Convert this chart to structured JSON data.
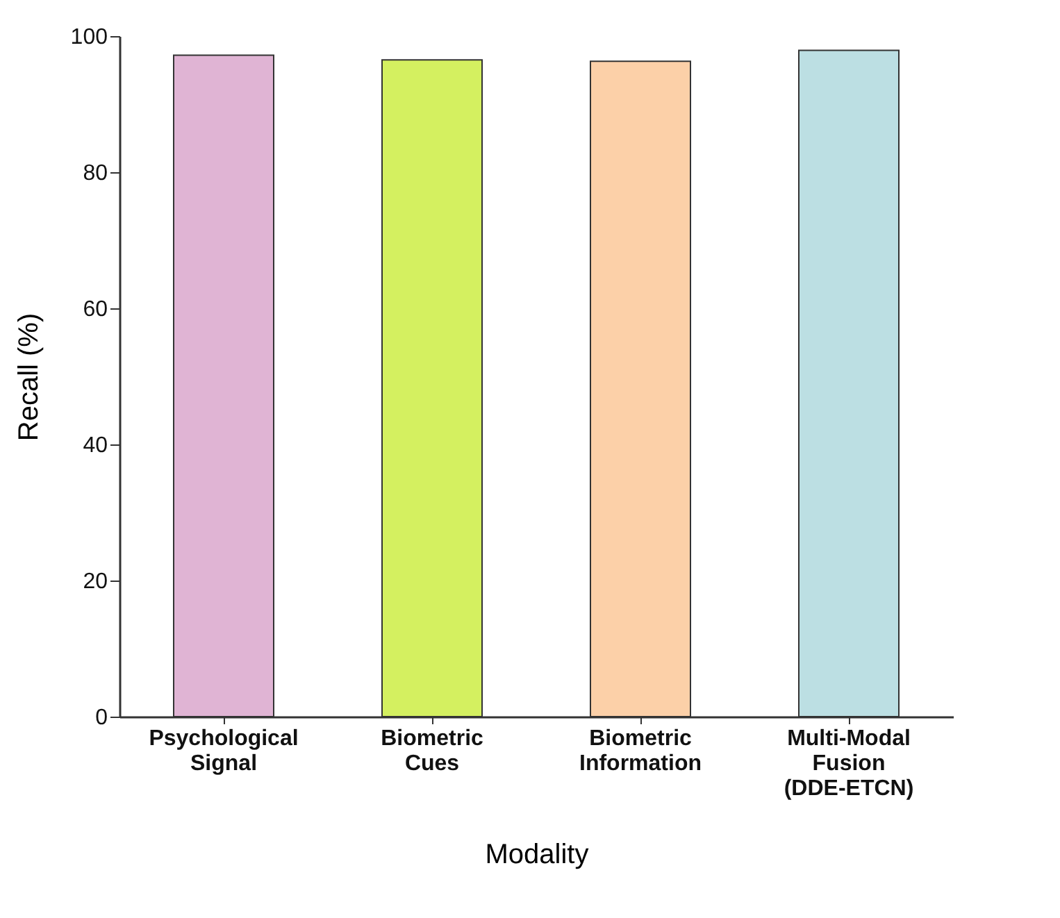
{
  "chart_data": {
    "type": "bar",
    "xlabel": "Modality",
    "ylabel": "Recall (%)",
    "categories": [
      "Psychological Signal",
      "Biometric Cues",
      "Biometric Information",
      "Multi-Modal Fusion (DDE-ETCN)"
    ],
    "values": [
      97.2,
      96.5,
      96.3,
      97.9
    ],
    "colors": [
      "#e0b4d4",
      "#d4f060",
      "#fcd0a8",
      "#bcdfe3"
    ],
    "ylim": [
      0,
      100
    ],
    "yticks": [
      0,
      20,
      40,
      60,
      80,
      100
    ],
    "grid": false,
    "legend": false
  }
}
